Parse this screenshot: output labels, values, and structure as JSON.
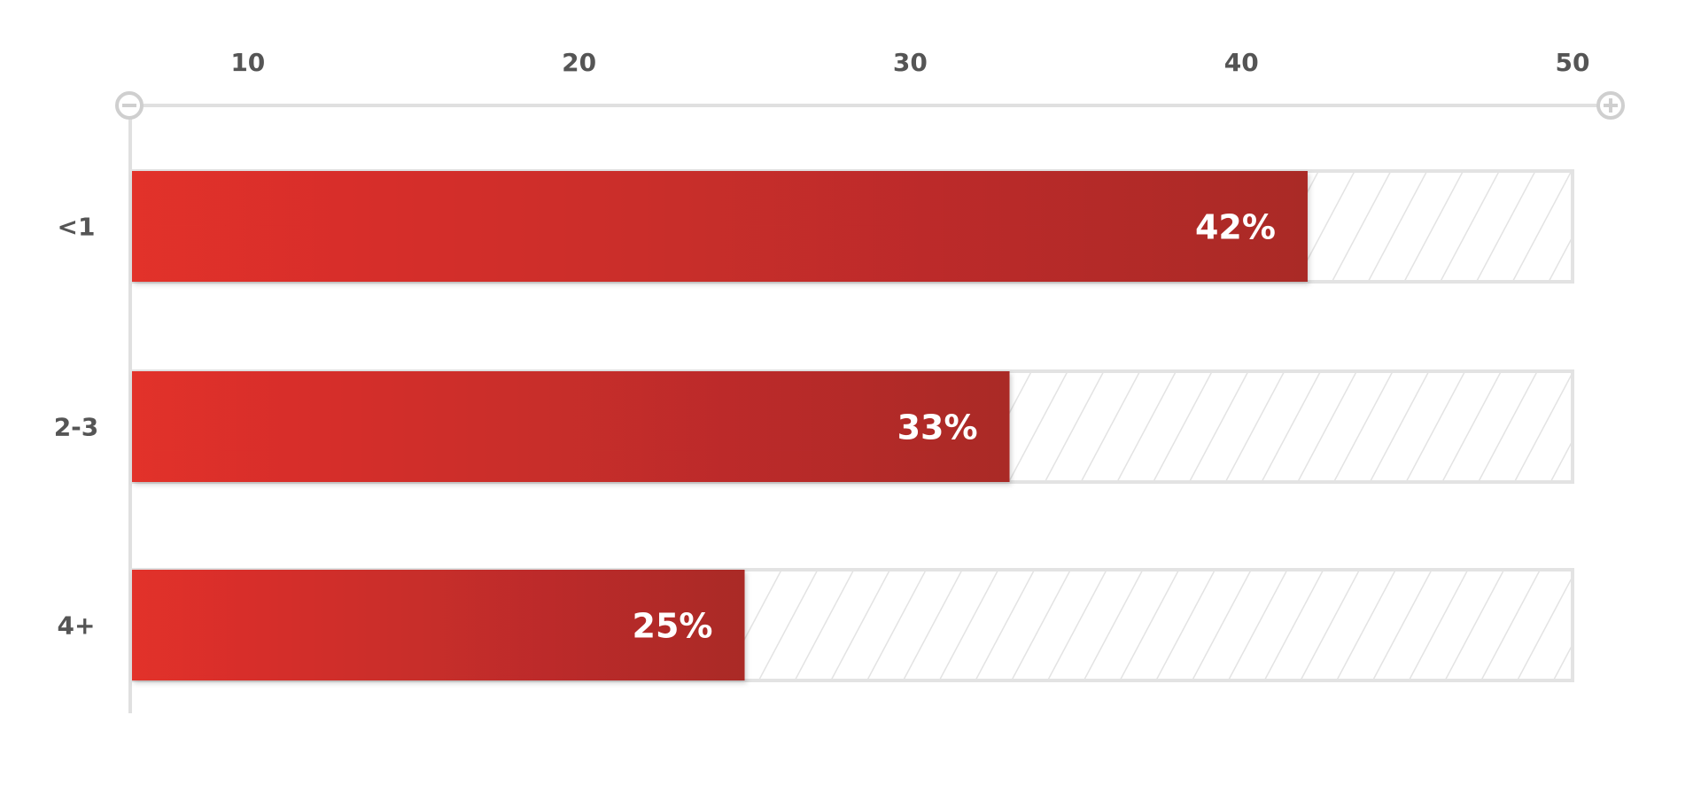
{
  "chart_data": {
    "type": "bar",
    "orientation": "horizontal",
    "categories": [
      "<1",
      "2-3",
      "4+"
    ],
    "values": [
      42,
      33,
      25
    ],
    "data_labels": [
      "42%",
      "33%",
      "25%"
    ],
    "xlim": [
      6.5,
      50
    ],
    "x_ticks": [
      "10",
      "20",
      "30",
      "40",
      "50"
    ],
    "title": "",
    "xlabel": "",
    "ylabel": "",
    "grid": false,
    "legend": "none",
    "remainder_style": "hatched",
    "colors": {
      "bar_start": "#e2302b",
      "bar_end": "#aa2a28",
      "axis": "#e0e0e0",
      "hatch": "#e3e3e3",
      "text": "#555555",
      "label": "#ffffff"
    },
    "icons": {
      "axis_start": "minus-circle-icon",
      "axis_end": "plus-circle-icon"
    }
  }
}
